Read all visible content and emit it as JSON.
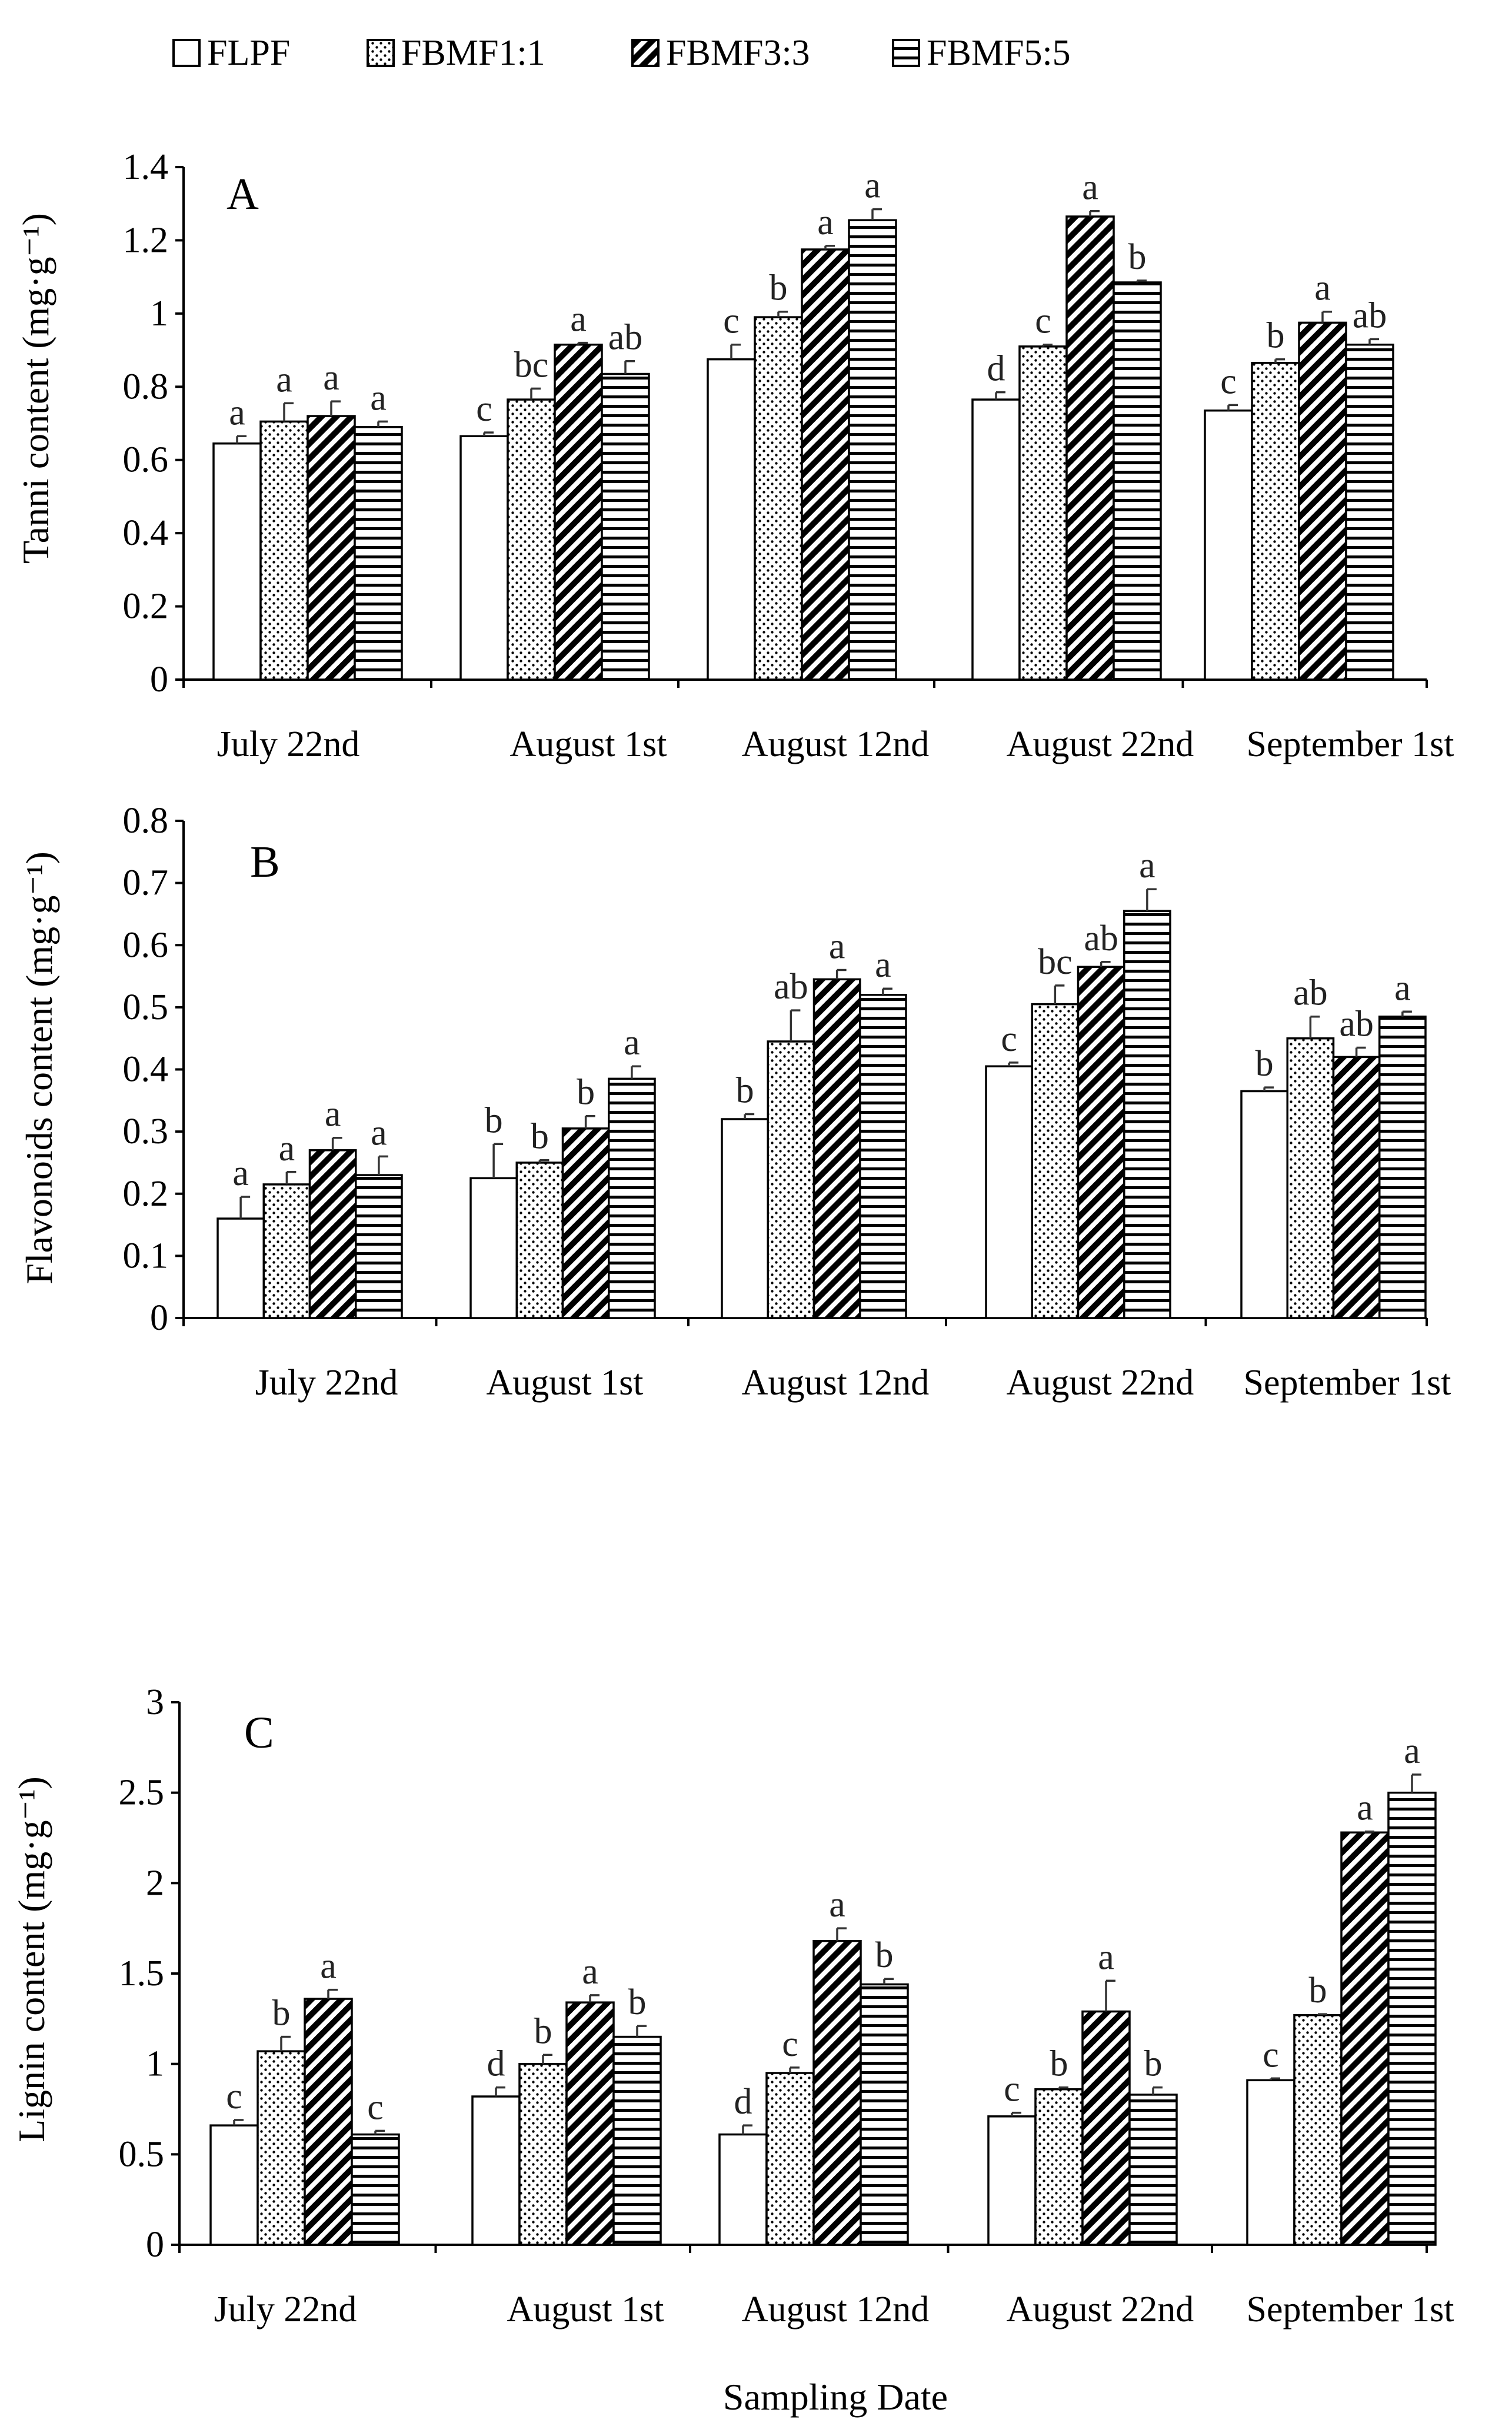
{
  "legend": {
    "items": [
      "FLPF",
      "FBMF1:1",
      "FBMF3:3",
      "FBMF5:5"
    ]
  },
  "xlabel": "Sampling Date",
  "colors": {
    "axis": "#000000",
    "bar_fill": "#ffffff",
    "hatch": "#000000"
  },
  "chart_data": [
    {
      "type": "bar",
      "panel_label": "A",
      "ylabel": "Tanni content (mg·g⁻¹)",
      "ylim": [
        0,
        1.4
      ],
      "yticks": [
        "0",
        "0.2",
        "0.4",
        "0.6",
        "0.8",
        "1",
        "1.2",
        "1.4"
      ],
      "categories": [
        "July 22nd",
        "August 1st",
        "August 12nd",
        "August 22nd",
        "September 1st"
      ],
      "series": [
        {
          "name": "FLPF",
          "values": [
            0.645,
            0.665,
            0.875,
            0.765,
            0.735
          ],
          "errors": [
            0.02,
            0.01,
            0.04,
            0.02,
            0.015
          ],
          "letters": [
            "a",
            "c",
            "c",
            "d",
            "c"
          ]
        },
        {
          "name": "FBMF1:1",
          "values": [
            0.705,
            0.765,
            0.99,
            0.91,
            0.865
          ],
          "errors": [
            0.05,
            0.03,
            0.015,
            0.005,
            0.01
          ],
          "letters": [
            "a",
            "bc",
            "b",
            "c",
            "b"
          ]
        },
        {
          "name": "FBMF3:3",
          "values": [
            0.72,
            0.915,
            1.175,
            1.265,
            0.975
          ],
          "errors": [
            0.04,
            0.005,
            0.01,
            0.015,
            0.03
          ],
          "letters": [
            "a",
            "a",
            "a",
            "a",
            "a"
          ]
        },
        {
          "name": "FBMF5:5",
          "values": [
            0.69,
            0.835,
            1.255,
            1.085,
            0.915
          ],
          "errors": [
            0.015,
            0.035,
            0.03,
            0.005,
            0.015
          ],
          "letters": [
            "a",
            "ab",
            "a",
            "b",
            "ab"
          ]
        }
      ]
    },
    {
      "type": "bar",
      "panel_label": "B",
      "ylabel": "Flavonoids content (mg·g⁻¹)",
      "ylim": [
        0,
        0.8
      ],
      "yticks": [
        "0",
        "0.1",
        "0.2",
        "0.3",
        "0.4",
        "0.5",
        "0.6",
        "0.7",
        "0.8"
      ],
      "categories": [
        "July 22nd",
        "August 1st",
        "August 12nd",
        "August 22nd",
        "September 1st"
      ],
      "series": [
        {
          "name": "FLPF",
          "values": [
            0.16,
            0.225,
            0.32,
            0.405,
            0.365
          ],
          "errors": [
            0.035,
            0.055,
            0.008,
            0.006,
            0.006
          ],
          "letters": [
            "a",
            "b",
            "b",
            "c",
            "b"
          ]
        },
        {
          "name": "FBMF1:1",
          "values": [
            0.215,
            0.25,
            0.445,
            0.505,
            0.45
          ],
          "errors": [
            0.02,
            0.004,
            0.05,
            0.03,
            0.035
          ],
          "letters": [
            "a",
            "b",
            "ab",
            "bc",
            "ab"
          ]
        },
        {
          "name": "FBMF3:3",
          "values": [
            0.27,
            0.305,
            0.545,
            0.565,
            0.42
          ],
          "errors": [
            0.02,
            0.02,
            0.015,
            0.008,
            0.015
          ],
          "letters": [
            "a",
            "b",
            "a",
            "ab",
            "ab"
          ]
        },
        {
          "name": "FBMF5:5",
          "values": [
            0.23,
            0.385,
            0.52,
            0.655,
            0.485
          ],
          "errors": [
            0.03,
            0.02,
            0.01,
            0.035,
            0.008
          ],
          "letters": [
            "a",
            "a",
            "a",
            "a",
            "a"
          ]
        }
      ]
    },
    {
      "type": "bar",
      "panel_label": "C",
      "ylabel": "Lignin content (mg·g⁻¹)",
      "ylim": [
        0,
        3
      ],
      "yticks": [
        "0",
        "0.5",
        "1",
        "1.5",
        "2",
        "2.5",
        "3"
      ],
      "categories": [
        "July 22nd",
        "August 1st",
        "August 12nd",
        "August 22nd",
        "September 1st"
      ],
      "series": [
        {
          "name": "FLPF",
          "values": [
            0.66,
            0.82,
            0.61,
            0.71,
            0.91
          ],
          "errors": [
            0.03,
            0.05,
            0.05,
            0.02,
            0.01
          ],
          "letters": [
            "c",
            "d",
            "d",
            "c",
            "c"
          ]
        },
        {
          "name": "FBMF1:1",
          "values": [
            1.07,
            1.0,
            0.95,
            0.86,
            1.27
          ],
          "errors": [
            0.08,
            0.05,
            0.03,
            0.01,
            0.005
          ],
          "letters": [
            "b",
            "b",
            "c",
            "b",
            "b"
          ]
        },
        {
          "name": "FBMF3:3",
          "values": [
            1.36,
            1.34,
            1.68,
            1.29,
            2.28
          ],
          "errors": [
            0.05,
            0.04,
            0.07,
            0.17,
            0.005
          ],
          "letters": [
            "a",
            "a",
            "a",
            "a",
            "a"
          ]
        },
        {
          "name": "FBMF5:5",
          "values": [
            0.61,
            1.15,
            1.44,
            0.83,
            2.5
          ],
          "errors": [
            0.02,
            0.06,
            0.03,
            0.04,
            0.1
          ],
          "letters": [
            "c",
            "b",
            "b",
            "b",
            "a"
          ]
        }
      ]
    }
  ]
}
